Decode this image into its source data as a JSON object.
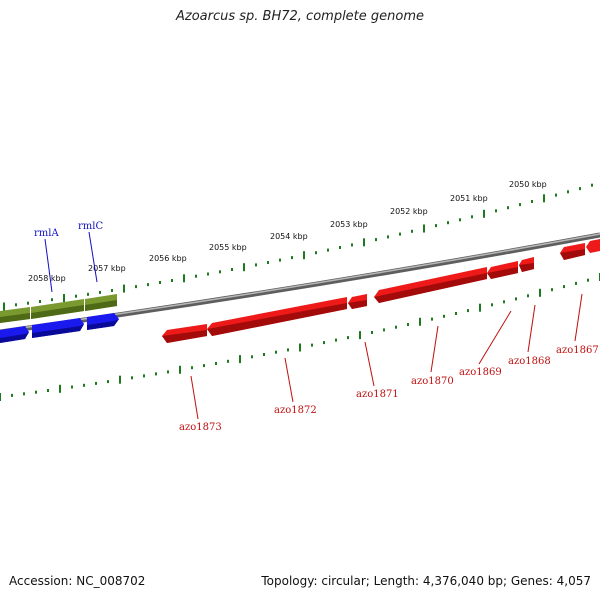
{
  "title": "Azoarcus sp. BH72, complete genome",
  "footer": {
    "accession": "Accession: NC_008702",
    "summary": "Topology: circular; Length: 4,376,040 bp; Genes: 4,057"
  },
  "colors": {
    "backbone": "#8a8a8a",
    "tick": "#1e7a1e",
    "forward_gene": "#6e8c2a",
    "forward_blue": "#1a1aee",
    "reverse_gene": "#ee1a1a",
    "label_forward": "#1010c0",
    "label_reverse": "#c01010"
  },
  "scale_labels": [
    "2058 kbp",
    "2057 kbp",
    "2056 kbp",
    "2055 kbp",
    "2054 kbp",
    "2053 kbp",
    "2052 kbp",
    "2051 kbp",
    "2050 kbp"
  ],
  "genes_forward": [
    {
      "name": "rmlA",
      "color": "green"
    },
    {
      "name": "rmlC",
      "color": "green"
    }
  ],
  "genes_reverse": [
    "azo1873",
    "azo1872",
    "azo1871",
    "azo1870",
    "azo1869",
    "azo1868",
    "azo1867"
  ]
}
